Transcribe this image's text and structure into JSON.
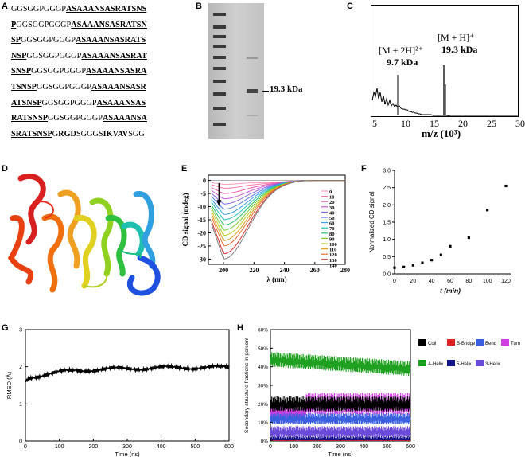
{
  "panel_labels": {
    "a": "A",
    "b": "B",
    "c": "C",
    "d": "D",
    "e": "E",
    "f": "F",
    "g": "G",
    "h": "H"
  },
  "sequence": {
    "lines": [
      [
        {
          "t": "GGSGGPGGGP",
          "s": "n"
        },
        {
          "t": "ASAAANSASRATSNS",
          "s": "u"
        }
      ],
      [
        {
          "t": "P",
          "s": "u"
        },
        {
          "t": "GGSGGPGGGP",
          "s": "n"
        },
        {
          "t": "ASAAANSASRATSN",
          "s": "u"
        }
      ],
      [
        {
          "t": "SP",
          "s": "u"
        },
        {
          "t": "GGSGGPGGGP",
          "s": "n"
        },
        {
          "t": "ASAAANSASRATS",
          "s": "u"
        }
      ],
      [
        {
          "t": "NSP",
          "s": "u"
        },
        {
          "t": "GGSGGPGGGP",
          "s": "n"
        },
        {
          "t": "ASAAANSASRAT",
          "s": "u"
        }
      ],
      [
        {
          "t": "SNSP",
          "s": "u"
        },
        {
          "t": "GGSGGPGGGP",
          "s": "n"
        },
        {
          "t": "ASAAANSASRA",
          "s": "u"
        }
      ],
      [
        {
          "t": "TSNSP",
          "s": "u"
        },
        {
          "t": "GGSGGPGGGP",
          "s": "n"
        },
        {
          "t": "ASAAANSASR",
          "s": "u"
        }
      ],
      [
        {
          "t": "ATSNSP",
          "s": "u"
        },
        {
          "t": "GGSGGPGGGP",
          "s": "n"
        },
        {
          "t": "ASAAANSAS",
          "s": "u"
        }
      ],
      [
        {
          "t": "RATSNSP",
          "s": "u"
        },
        {
          "t": "GGSGGPGGGP",
          "s": "n"
        },
        {
          "t": "ASAAANSA",
          "s": "u"
        }
      ],
      [
        {
          "t": "SRATSNSP",
          "s": "u"
        },
        {
          "t": "G",
          "s": "n"
        },
        {
          "t": "RGD",
          "s": "b"
        },
        {
          "t": "SGGGS",
          "s": "n"
        },
        {
          "t": "IKVAV",
          "s": "b"
        },
        {
          "t": "SGG",
          "s": "n"
        }
      ]
    ]
  },
  "gel": {
    "band_label": "19.3 kDa"
  },
  "mass_spec": {
    "peak1_label": "[M + 2H]²⁺",
    "peak1_value": "9.7 kDa",
    "peak2_label": "[M + H]⁺",
    "peak2_value": "19.3 kDa",
    "xlabel": "m/z (10³)",
    "xticks": [
      "5",
      "10",
      "15",
      "20",
      "25",
      "30"
    ]
  },
  "chart_data": [
    {
      "type": "line",
      "panel": "E",
      "xlabel": "λ (nm)",
      "ylabel": "CD signal (mdeg)",
      "xlim": [
        190,
        280
      ],
      "ylim": [
        -32,
        2
      ],
      "xticks": [
        "200",
        "220",
        "240",
        "260",
        "280"
      ],
      "yticks": [
        "0",
        "-5",
        "-10",
        "-15",
        "-20",
        "-25",
        "-30"
      ],
      "legend_position": "right",
      "series_names": [
        "0",
        "10",
        "20",
        "30",
        "40",
        "50",
        "60",
        "70",
        "80",
        "90",
        "100",
        "110",
        "120",
        "130",
        "140"
      ],
      "series_colors": [
        "#ff9fb8",
        "#ff78a8",
        "#e65aa8",
        "#c85ad8",
        "#8a6ae0",
        "#5a7ae8",
        "#3aa0e8",
        "#2ac0c0",
        "#30c070",
        "#7acc30",
        "#b8c820",
        "#e0a020",
        "#e87030",
        "#d03030",
        "#808080"
      ],
      "min_values": [
        -1.5,
        -3,
        -5,
        -7,
        -9,
        -11,
        -13,
        -15,
        -17,
        -19,
        -21,
        -23,
        -25,
        -28,
        -30
      ]
    },
    {
      "type": "scatter",
      "panel": "F",
      "xlabel": "t (min)",
      "ylabel": "Normalized CD signal",
      "xlim": [
        0,
        120
      ],
      "ylim": [
        0,
        3.0
      ],
      "xticks": [
        "0",
        "20",
        "40",
        "60",
        "80",
        "100",
        "120"
      ],
      "yticks": [
        "0.0",
        "0.5",
        "1.0",
        "1.5",
        "2.0",
        "2.5",
        "3.0"
      ],
      "x": [
        0,
        10,
        20,
        30,
        40,
        50,
        60,
        80,
        100,
        120
      ],
      "y": [
        0.18,
        0.2,
        0.25,
        0.32,
        0.4,
        0.55,
        0.8,
        1.05,
        1.85,
        2.55
      ]
    },
    {
      "type": "line",
      "panel": "G",
      "xlabel": "Time (ns)",
      "ylabel": "RMSD (Å)",
      "xlim": [
        0,
        600
      ],
      "ylim": [
        0,
        3
      ],
      "xticks": [
        "0",
        "100",
        "200",
        "300",
        "400",
        "500",
        "600"
      ],
      "yticks": [
        "0",
        "1",
        "2",
        "3"
      ],
      "x": [
        0,
        10,
        30,
        60,
        100,
        150,
        200,
        300,
        400,
        500,
        600
      ],
      "y": [
        1.6,
        1.7,
        1.75,
        1.8,
        1.85,
        1.9,
        1.92,
        1.95,
        1.97,
        1.98,
        1.98
      ]
    },
    {
      "type": "line",
      "panel": "H",
      "xlabel": "Time (ns)",
      "ylabel": "Secondary structure fractions in percent",
      "xlim": [
        0,
        600
      ],
      "ylim": [
        0,
        60
      ],
      "xticks": [
        "0",
        "100",
        "200",
        "300",
        "400",
        "500",
        "600"
      ],
      "yticks": [
        "0%",
        "10%",
        "20%",
        "30%",
        "40%",
        "50%",
        "60%"
      ],
      "legend_position": "right",
      "series": [
        {
          "name": "Coil",
          "color": "#000000",
          "level": 20
        },
        {
          "name": "B-Bridge",
          "color": "#e02020",
          "level": 0
        },
        {
          "name": "Bend",
          "color": "#3a60e0",
          "level": 12
        },
        {
          "name": "Turn",
          "color": "#d040e0",
          "level": 20
        },
        {
          "name": "A-Helix",
          "color": "#20a020",
          "level": 41
        },
        {
          "name": "5-Helix",
          "color": "#10108a",
          "level": 1
        },
        {
          "name": "3-Helix",
          "color": "#6a4ad8",
          "level": 5
        }
      ]
    }
  ]
}
